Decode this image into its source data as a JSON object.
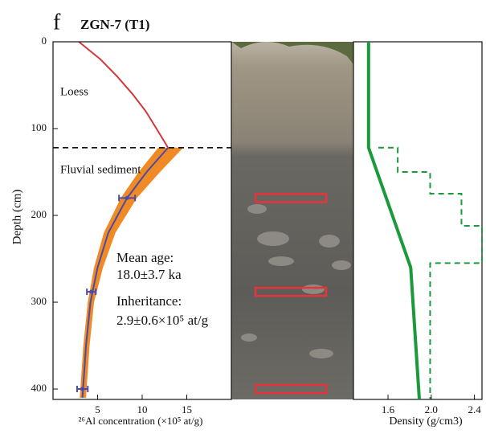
{
  "panel": "f",
  "chart_data": [
    {
      "type": "profile",
      "title": "ZGN-7 (T1)",
      "xlabel": "²⁶Al concentration (×10⁵ at/g)",
      "ylabel": "Depth (cm)",
      "xlim": [
        0,
        20
      ],
      "ylim": [
        0,
        412
      ],
      "xticks": [
        5,
        10,
        15
      ],
      "yticks": [
        0,
        100,
        200,
        300,
        400
      ],
      "boundary_depth": 122,
      "annotations": [
        "Loess",
        "Fluvial sediment",
        "Mean age:",
        "18.0±3.7 ka",
        "Inheritance:",
        "2.9±0.6×10⁵ at/g"
      ],
      "band": {
        "color": "#f08a24",
        "y": [
          122,
          150,
          180,
          220,
          260,
          300,
          350,
          410
        ],
        "low": [
          11.8,
          9.6,
          7.6,
          5.7,
          4.6,
          3.9,
          3.4,
          3.0
        ],
        "high": [
          14.6,
          12.0,
          9.4,
          7.0,
          5.6,
          4.6,
          4.1,
          3.7
        ]
      },
      "series": [
        {
          "color": "#d2373c",
          "y": [
            0,
            20,
            40,
            60,
            80,
            100,
            122
          ],
          "x": [
            2.9,
            5.3,
            7.2,
            8.9,
            10.4,
            11.6,
            12.9
          ]
        },
        {
          "color": "#4a4aa8",
          "y": [
            122,
            150,
            180,
            220,
            260,
            300,
            350,
            410
          ],
          "x": [
            12.9,
            10.5,
            8.3,
            6.2,
            5.0,
            4.2,
            3.7,
            3.3
          ]
        }
      ],
      "samples": {
        "color": "#4a4aa8",
        "y": [
          180,
          288,
          400
        ],
        "x": [
          8.3,
          4.3,
          3.3
        ],
        "err": [
          0.9,
          0.5,
          0.6
        ]
      }
    },
    {
      "type": "line",
      "xlabel": "Density (g/cm3)",
      "xlim": [
        1.28,
        2.47
      ],
      "ylim": [
        0,
        412
      ],
      "xticks": [
        1.6,
        {
          "value": 2,
          "label": "2.0"
        },
        2.4
      ],
      "series": [
        {
          "color": "#1a9a3a",
          "style": "solid",
          "y": [
            0,
            122,
            260,
            412
          ],
          "x": [
            1.42,
            1.42,
            1.81,
            1.89
          ]
        },
        {
          "color": "#1a9a3a",
          "style": "dashed",
          "y": [
            122,
            122,
            150,
            150,
            175,
            175,
            212,
            212,
            255,
            255,
            412
          ],
          "x": [
            1.51,
            1.69,
            1.69,
            1.99,
            1.99,
            2.28,
            2.28,
            2.47,
            2.47,
            1.99,
            1.99
          ]
        }
      ]
    }
  ]
}
